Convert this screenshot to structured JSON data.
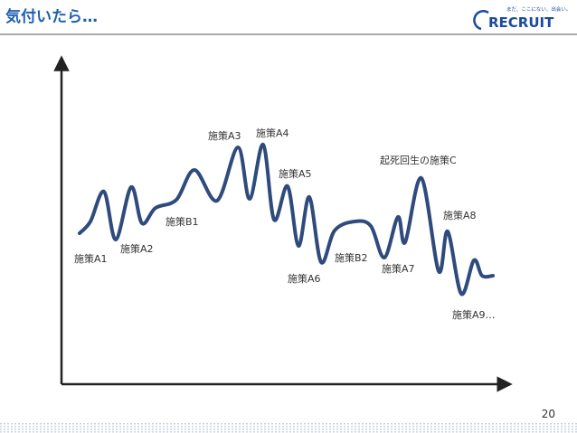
{
  "header": {
    "title": "気付いたら…",
    "tagline": "まだ、ここにない、出会い。",
    "logo": "RECRUIT"
  },
  "labels": [
    "施策A1",
    "施策A2",
    "施策B1",
    "施策A3",
    "施策A4",
    "施策A5",
    "施策A6",
    "施策B2",
    "施策A7",
    "起死回生の施策C",
    "施策A8",
    "施策A9…"
  ],
  "page_number": "20"
}
